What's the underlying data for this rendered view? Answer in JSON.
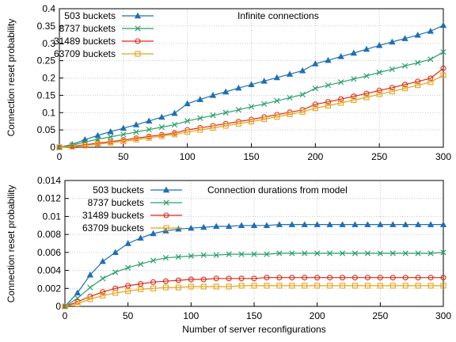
{
  "chart_data": [
    {
      "type": "line",
      "title": "",
      "annotation": "Infinite connections",
      "xlabel": "",
      "ylabel": "Connection reset probability",
      "xlim": [
        0,
        300
      ],
      "ylim": [
        0,
        0.4
      ],
      "xticks": [
        "0",
        "50",
        "100",
        "150",
        "200",
        "250",
        "300"
      ],
      "yticks": [
        "0",
        "0.05",
        "0.1",
        "0.15",
        "0.2",
        "0.25",
        "0.3",
        "0.35",
        "0.4"
      ],
      "grid": true,
      "legend_position": "top-left",
      "x": [
        0,
        10,
        20,
        30,
        40,
        50,
        60,
        70,
        80,
        90,
        100,
        110,
        120,
        130,
        140,
        150,
        160,
        170,
        180,
        190,
        200,
        210,
        220,
        230,
        240,
        250,
        260,
        270,
        280,
        290,
        300
      ],
      "series": [
        {
          "name": "503 buckets",
          "color": "#1f6fb4",
          "marker": "triangle",
          "values": [
            0,
            0.008,
            0.022,
            0.034,
            0.045,
            0.055,
            0.065,
            0.076,
            0.087,
            0.098,
            0.126,
            0.138,
            0.15,
            0.16,
            0.171,
            0.181,
            0.191,
            0.201,
            0.211,
            0.221,
            0.241,
            0.251,
            0.262,
            0.272,
            0.283,
            0.294,
            0.304,
            0.314,
            0.324,
            0.335,
            0.352
          ]
        },
        {
          "name": "8737 buckets",
          "color": "#2aa06a",
          "marker": "x",
          "values": [
            0,
            0.006,
            0.015,
            0.023,
            0.03,
            0.037,
            0.044,
            0.051,
            0.058,
            0.065,
            0.076,
            0.084,
            0.092,
            0.1,
            0.108,
            0.117,
            0.125,
            0.134,
            0.143,
            0.152,
            0.17,
            0.179,
            0.188,
            0.197,
            0.206,
            0.216,
            0.225,
            0.235,
            0.244,
            0.254,
            0.275
          ]
        },
        {
          "name": "31489 buckets",
          "color": "#dd2a1b",
          "marker": "circle",
          "values": [
            0,
            0.003,
            0.007,
            0.012,
            0.016,
            0.021,
            0.026,
            0.031,
            0.036,
            0.041,
            0.05,
            0.056,
            0.062,
            0.068,
            0.074,
            0.08,
            0.087,
            0.094,
            0.101,
            0.108,
            0.124,
            0.131,
            0.139,
            0.147,
            0.155,
            0.164,
            0.172,
            0.181,
            0.19,
            0.199,
            0.228
          ]
        },
        {
          "name": "63709 buckets",
          "color": "#e8a317",
          "marker": "square",
          "values": [
            0,
            0.002,
            0.005,
            0.009,
            0.013,
            0.017,
            0.022,
            0.027,
            0.032,
            0.037,
            0.044,
            0.05,
            0.056,
            0.062,
            0.068,
            0.074,
            0.081,
            0.088,
            0.095,
            0.102,
            0.113,
            0.12,
            0.128,
            0.136,
            0.144,
            0.153,
            0.161,
            0.17,
            0.179,
            0.188,
            0.208
          ]
        }
      ]
    },
    {
      "type": "line",
      "title": "",
      "annotation": "Connection durations from model",
      "xlabel": "Number of server reconfigurations",
      "ylabel": "Connection reset probability",
      "xlim": [
        0,
        300
      ],
      "ylim": [
        0,
        0.014
      ],
      "xticks": [
        "0",
        "50",
        "100",
        "150",
        "200",
        "250",
        "300"
      ],
      "yticks": [
        "0",
        "0.002",
        "0.004",
        "0.006",
        "0.008",
        "0.01",
        "0.012",
        "0.014"
      ],
      "grid": true,
      "legend_position": "top-left",
      "x": [
        0,
        10,
        20,
        30,
        40,
        50,
        60,
        70,
        80,
        90,
        100,
        110,
        120,
        130,
        140,
        150,
        160,
        170,
        180,
        190,
        200,
        210,
        220,
        230,
        240,
        250,
        260,
        270,
        280,
        290,
        300
      ],
      "series": [
        {
          "name": "503 buckets",
          "color": "#1f6fb4",
          "marker": "triangle",
          "values": [
            0,
            0.0015,
            0.0035,
            0.005,
            0.006,
            0.007,
            0.0076,
            0.0081,
            0.0084,
            0.0086,
            0.0087,
            0.0088,
            0.0089,
            0.0089,
            0.009,
            0.009,
            0.009,
            0.0091,
            0.0091,
            0.0091,
            0.0091,
            0.0091,
            0.0091,
            0.0091,
            0.0091,
            0.0091,
            0.0091,
            0.0091,
            0.0091,
            0.0091,
            0.0091
          ]
        },
        {
          "name": "8737 buckets",
          "color": "#2aa06a",
          "marker": "x",
          "values": [
            0,
            0.0009,
            0.0021,
            0.0031,
            0.0038,
            0.0043,
            0.0047,
            0.0051,
            0.0054,
            0.0055,
            0.0056,
            0.0057,
            0.0057,
            0.0058,
            0.0058,
            0.0058,
            0.0058,
            0.0059,
            0.0059,
            0.0059,
            0.0059,
            0.0059,
            0.0059,
            0.0059,
            0.0059,
            0.0059,
            0.0059,
            0.0059,
            0.0059,
            0.0059,
            0.006
          ]
        },
        {
          "name": "31489 buckets",
          "color": "#dd2a1b",
          "marker": "circle",
          "values": [
            0,
            0.0005,
            0.0011,
            0.0016,
            0.002,
            0.0023,
            0.0025,
            0.0027,
            0.0028,
            0.0029,
            0.003,
            0.003,
            0.0031,
            0.0031,
            0.0031,
            0.0031,
            0.0032,
            0.0032,
            0.0032,
            0.0032,
            0.0032,
            0.0032,
            0.0032,
            0.0032,
            0.0032,
            0.0032,
            0.0032,
            0.0032,
            0.0032,
            0.0032,
            0.0032
          ]
        },
        {
          "name": "63709 buckets",
          "color": "#e8a317",
          "marker": "square",
          "values": [
            0,
            0.0003,
            0.0008,
            0.0012,
            0.0015,
            0.0017,
            0.0019,
            0.002,
            0.0021,
            0.0021,
            0.0022,
            0.0022,
            0.0022,
            0.0022,
            0.0023,
            0.0023,
            0.0023,
            0.0023,
            0.0023,
            0.0023,
            0.0023,
            0.0023,
            0.0023,
            0.0023,
            0.0023,
            0.0023,
            0.0023,
            0.0023,
            0.0023,
            0.0023,
            0.0023
          ]
        }
      ]
    }
  ]
}
